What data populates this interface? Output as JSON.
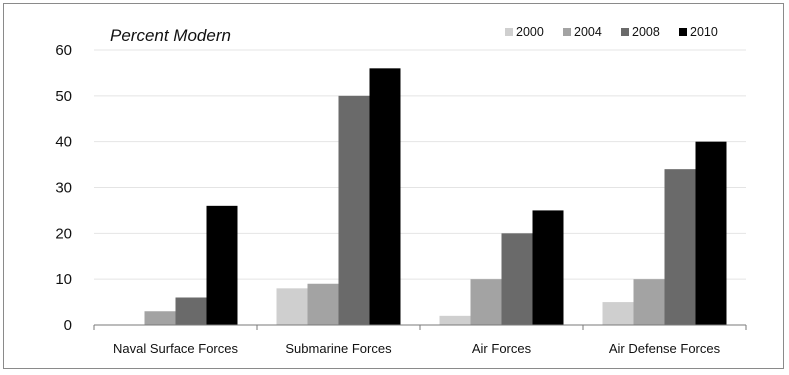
{
  "chart_data": {
    "type": "bar",
    "title": "Percent Modern",
    "xlabel": "",
    "ylabel": "",
    "categories": [
      "Naval Surface Forces",
      "Submarine Forces",
      "Air Forces",
      "Air Defense Forces"
    ],
    "series": [
      {
        "name": "2000",
        "color": "#cfcfcf",
        "values": [
          0,
          8,
          2,
          5
        ]
      },
      {
        "name": "2004",
        "color": "#a3a3a3",
        "values": [
          3,
          9,
          10,
          10
        ]
      },
      {
        "name": "2008",
        "color": "#6a6a6a",
        "values": [
          6,
          50,
          20,
          34
        ]
      },
      {
        "name": "2010",
        "color": "#000000",
        "values": [
          26,
          56,
          25,
          40
        ]
      }
    ],
    "ylim": [
      0,
      60
    ],
    "yticks": [
      0,
      10,
      20,
      30,
      40,
      50,
      60
    ],
    "grid": true,
    "legend_position": "top-right"
  }
}
